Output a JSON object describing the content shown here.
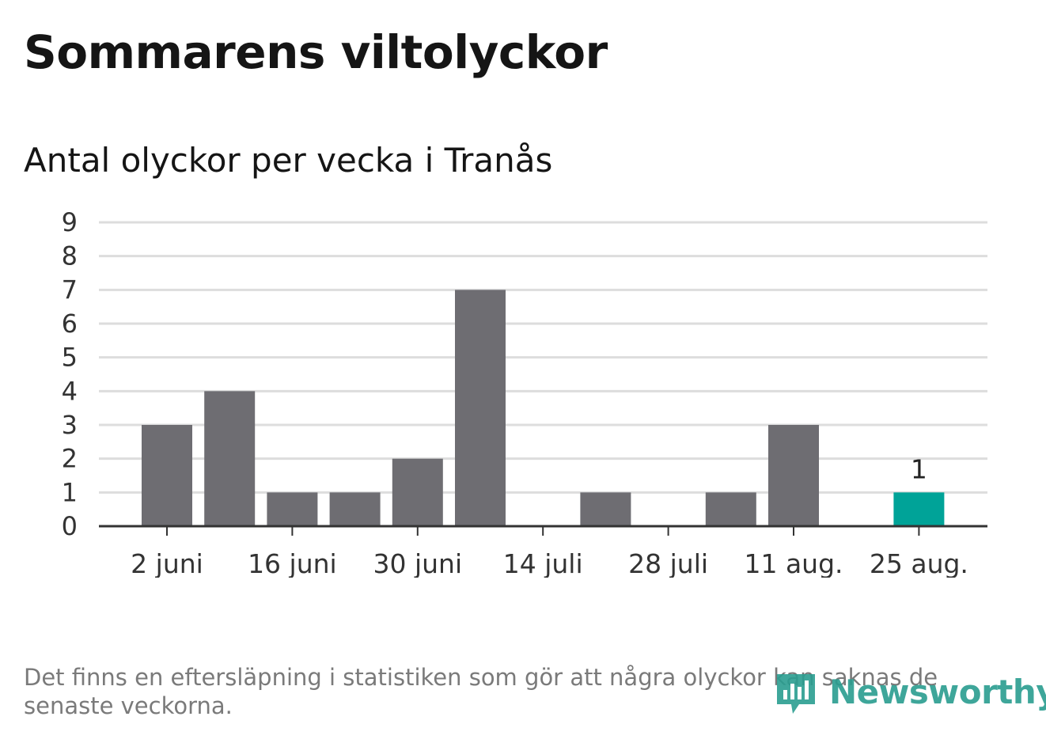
{
  "title": "Sommarens viltolyckor",
  "subtitle": "Antal olyckor per vecka i Tranås",
  "footnote": "Det finns en eftersläpning i statistiken som gör att några olyckor kan saknas de senaste veckorna.",
  "logo_text": "Newsworthy",
  "colors": {
    "bar": "#6e6d72",
    "highlight": "#00a398",
    "grid": "#dddddd",
    "axis": "#333333"
  },
  "chart_data": {
    "type": "bar",
    "title": "Sommarens viltolyckor",
    "subtitle": "Antal olyckor per vecka i Tranås",
    "x": [
      "2025-06-02",
      "2025-06-09",
      "2025-06-16",
      "2025-06-23",
      "2025-06-30",
      "2025-07-07",
      "2025-07-14",
      "2025-07-21",
      "2025-07-28",
      "2025-08-04",
      "2025-08-11",
      "2025-08-18",
      "2025-08-25"
    ],
    "values": [
      3,
      4,
      1,
      1,
      2,
      7,
      0,
      1,
      0,
      1,
      3,
      0,
      1
    ],
    "highlight_last": true,
    "data_labels": [
      {
        "x": "2025-08-25",
        "text": "1"
      }
    ],
    "xticks": [
      {
        "x": "2025-06-02",
        "label": "2 juni"
      },
      {
        "x": "2025-06-16",
        "label": "16 juni"
      },
      {
        "x": "2025-06-30",
        "label": "30 juni"
      },
      {
        "x": "2025-07-14",
        "label": "14 juli"
      },
      {
        "x": "2025-07-28",
        "label": "28 juli"
      },
      {
        "x": "2025-08-11",
        "label": "11 aug."
      },
      {
        "x": "2025-08-25",
        "label": "25 aug."
      }
    ],
    "yticks": [
      0,
      1,
      2,
      3,
      4,
      5,
      6,
      7,
      8,
      9
    ],
    "ylim": [
      0,
      9
    ],
    "grid": true,
    "legend": "none"
  }
}
